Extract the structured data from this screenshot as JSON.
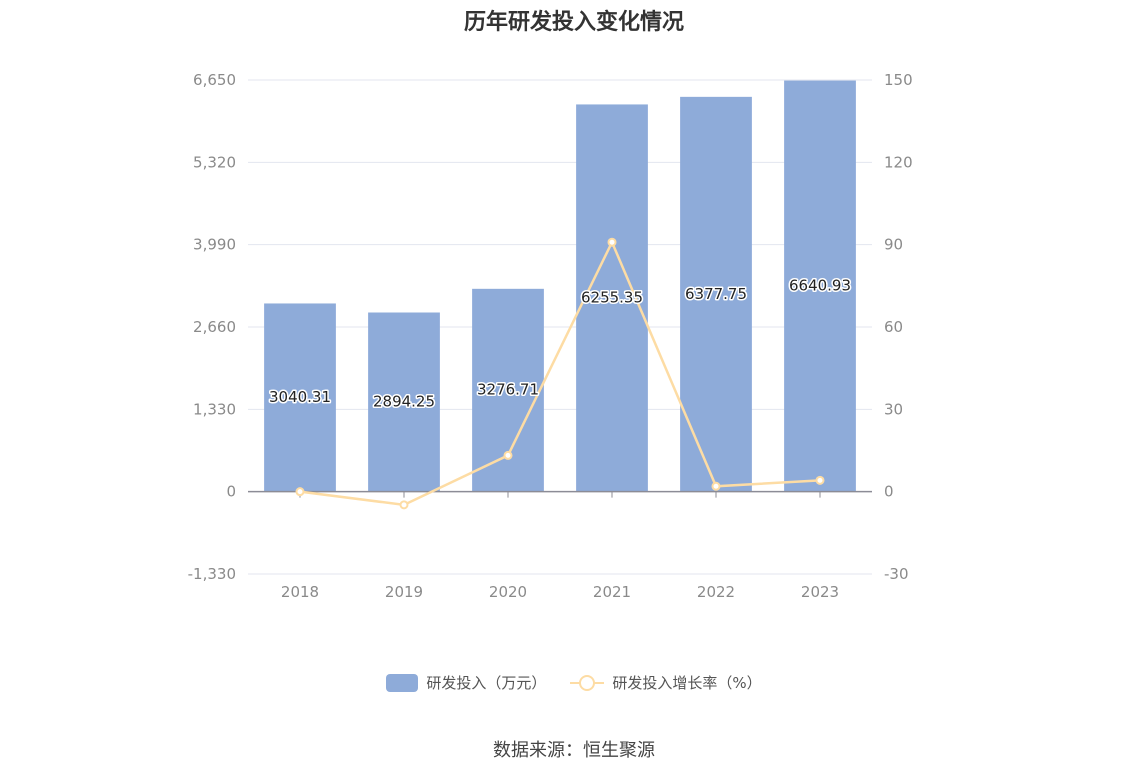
{
  "chart_data": {
    "type": "bar",
    "title": "历年研发投入变化情况",
    "categories": [
      "2018",
      "2019",
      "2020",
      "2021",
      "2022",
      "2023"
    ],
    "series": [
      {
        "name": "研发投入（万元）",
        "type": "bar",
        "axis": "left",
        "values": [
          3040.31,
          2894.25,
          3276.71,
          6255.35,
          6377.75,
          6640.93
        ],
        "labels": [
          "3040.31",
          "2894.25",
          "3276.71",
          "6255.35",
          "6377.75",
          "6640.93"
        ],
        "color": "#8eabd9"
      },
      {
        "name": "研发投入增长率（%）",
        "type": "line",
        "axis": "right",
        "values": [
          0,
          -4.8,
          13.22,
          90.9,
          1.96,
          4.13
        ],
        "color": "#fddca4"
      }
    ],
    "y_left": {
      "min": -1330,
      "max": 6650,
      "ticks": [
        -1330,
        0,
        1330,
        2660,
        3990,
        5320,
        6650
      ],
      "tick_labels": [
        "-1,330",
        "0",
        "1,330",
        "2,660",
        "3,990",
        "5,320",
        "6,650"
      ]
    },
    "y_right": {
      "min": -30,
      "max": 150,
      "ticks": [
        -30,
        0,
        30,
        60,
        90,
        120,
        150
      ],
      "tick_labels": [
        "-30",
        "0",
        "30",
        "60",
        "90",
        "120",
        "150"
      ]
    },
    "grid": true,
    "legend_position": "bottom-center"
  },
  "source_text": "数据来源：恒生聚源"
}
